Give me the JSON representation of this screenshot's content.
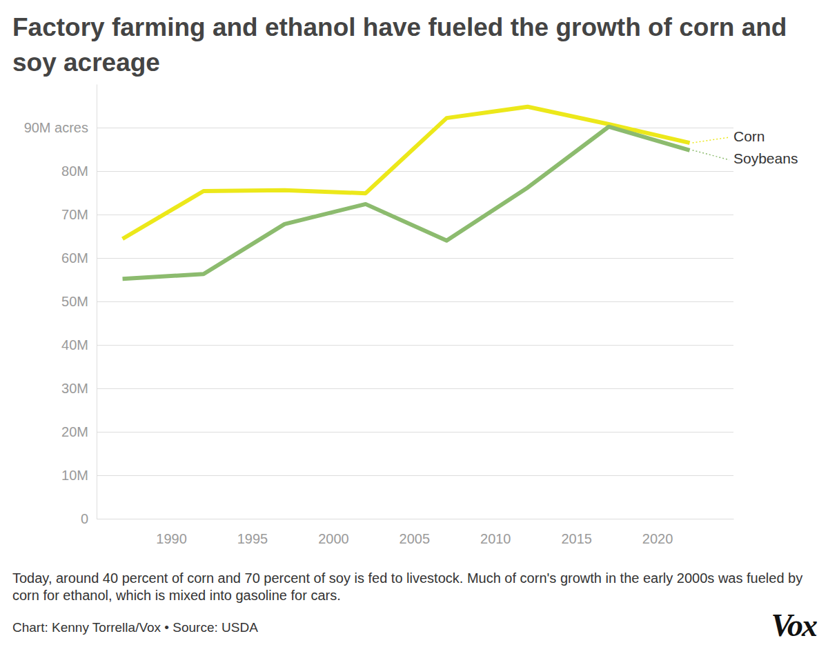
{
  "chart_data": {
    "type": "line",
    "title": "Factory farming and ethanol have fueled the growth of corn and soy acreage",
    "caption": "Today, around 40 percent of corn and 70 percent of soy is fed to livestock. Much of corn's growth in the early 2000s was fueled by corn for ethanol, which is mixed into gasoline for cars.",
    "source": "Chart: Kenny Torrella/Vox • Source: USDA",
    "logo": "Vox",
    "x": [
      1987,
      1992,
      1997,
      2002,
      2007,
      2012,
      2017,
      2022
    ],
    "series": [
      {
        "name": "Corn",
        "color": "#ece81a",
        "line_style": "solid",
        "values": [
          64.4,
          75.4,
          75.6,
          74.9,
          92.2,
          94.8,
          90.8,
          86.5
        ]
      },
      {
        "name": "Soybeans",
        "color": "#8cbb6e",
        "line_style": "solid",
        "values": [
          55.2,
          56.3,
          67.8,
          72.4,
          64.0,
          76.2,
          90.2,
          84.8
        ]
      }
    ],
    "xlim": [
      1985.4,
      2024.7
    ],
    "xticks": [
      1990,
      1995,
      2000,
      2005,
      2010,
      2015,
      2020
    ],
    "ylim": [
      0,
      100
    ],
    "yticks": [
      0,
      {
        "value": 10,
        "label": "10M"
      },
      {
        "value": 20,
        "label": "20M"
      },
      {
        "value": 30,
        "label": "30M"
      },
      {
        "value": 40,
        "label": "40M"
      },
      {
        "value": 50,
        "label": "50M"
      },
      {
        "value": 60,
        "label": "60M"
      },
      {
        "value": 70,
        "label": "70M"
      },
      {
        "value": 80,
        "label": "80M"
      },
      {
        "value": 90,
        "label": "90M acres"
      }
    ],
    "grid": true
  }
}
